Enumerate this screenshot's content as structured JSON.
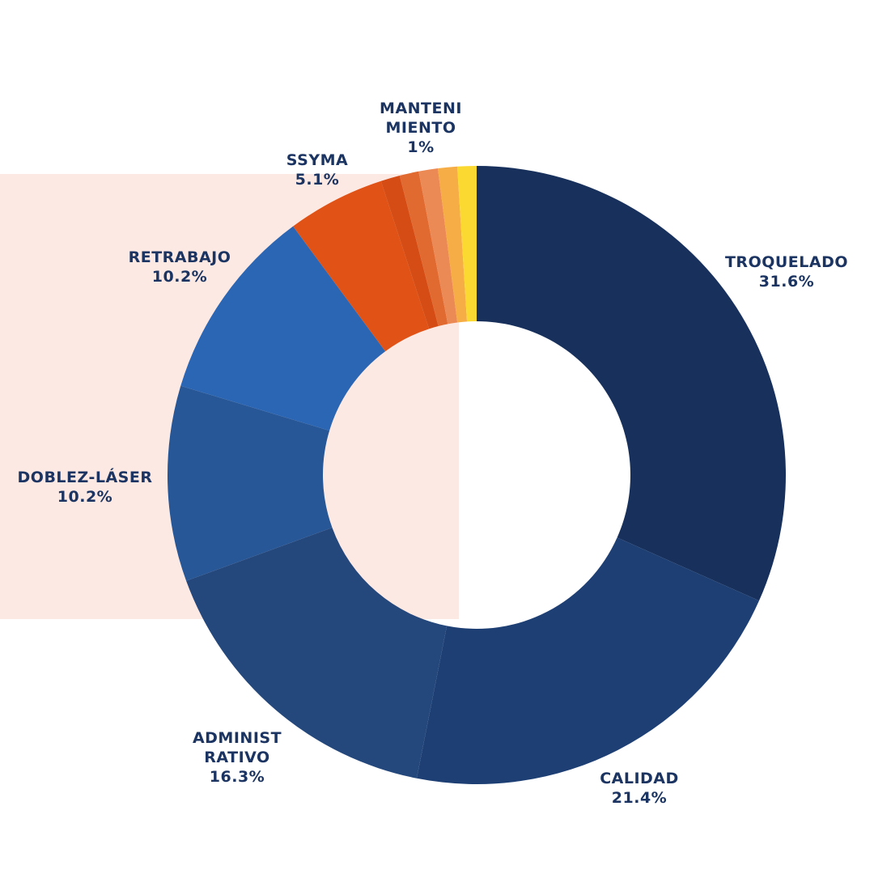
{
  "chart_data": {
    "type": "pie",
    "donut": true,
    "slices": [
      {
        "label": [
          "TROQUELADO"
        ],
        "value_label": "31.6%",
        "value": 31.6,
        "color": "#17305c"
      },
      {
        "label": [
          "CALIDAD"
        ],
        "value_label": "21.4%",
        "value": 21.4,
        "color": "#1d3f74"
      },
      {
        "label": [
          "ADMINIST",
          "RATIVO"
        ],
        "value_label": "16.3%",
        "value": 16.3,
        "color": "#24477c"
      },
      {
        "label": [
          "DOBLEZ-LÁSER"
        ],
        "value_label": "10.2%",
        "value": 10.2,
        "color": "#275796"
      },
      {
        "label": [
          "RETRABAJO"
        ],
        "value_label": "10.2%",
        "value": 10.2,
        "color": "#2b66b4"
      },
      {
        "label": [
          "SSYMA"
        ],
        "value_label": "5.1%",
        "value": 5.1,
        "color": "#e05216"
      },
      {
        "label": [],
        "value_label": "",
        "value": 1.0,
        "color": "#d54c14"
      },
      {
        "label": [],
        "value_label": "",
        "value": 1.0,
        "color": "#e06a30"
      },
      {
        "label": [],
        "value_label": "",
        "value": 1.0,
        "color": "#ec8a55"
      },
      {
        "label": [
          "MANTENI",
          "MIENTO"
        ],
        "value_label": "1%",
        "value": 1.0,
        "color": "#f7ad45"
      },
      {
        "label": [],
        "value_label": "",
        "value": 1.0,
        "color": "#fbd930"
      }
    ]
  }
}
